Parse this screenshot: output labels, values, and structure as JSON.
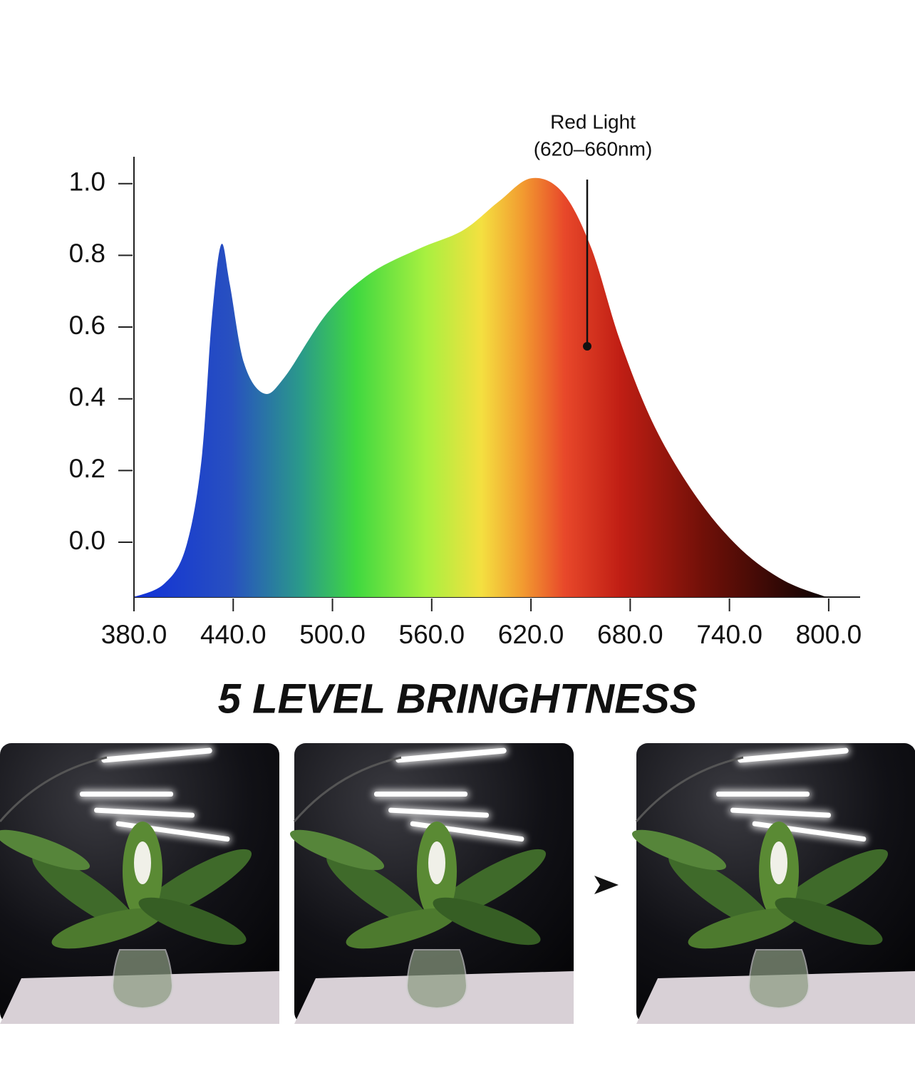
{
  "chart_data": {
    "type": "area",
    "x": [
      380,
      398,
      411,
      420.6,
      427,
      432.7,
      437.9,
      446.5,
      458.5,
      471,
      497,
      523,
      553,
      579,
      600.5,
      620,
      639,
      656.5,
      674,
      695,
      721,
      747,
      773,
      798.5
    ],
    "series": [
      {
        "values": [
          -0.153,
          -0.117,
          -0.02,
          0.22,
          0.62,
          0.83,
          0.72,
          0.5,
          0.415,
          0.46,
          0.64,
          0.75,
          0.82,
          0.87,
          0.95,
          1.015,
          0.976,
          0.82,
          0.56,
          0.32,
          0.12,
          -0.02,
          -0.107,
          -0.153
        ]
      }
    ],
    "xlim": [
      380,
      819
    ],
    "ylim": [
      -0.153,
      1.075
    ],
    "xticks": [
      {
        "value": 380,
        "label": "380.0"
      },
      {
        "value": 440,
        "label": "440.0"
      },
      {
        "value": 500,
        "label": "500.0"
      },
      {
        "value": 560,
        "label": "560.0"
      },
      {
        "value": 620,
        "label": "620.0"
      },
      {
        "value": 680,
        "label": "680.0"
      },
      {
        "value": 740,
        "label": "740.0"
      },
      {
        "value": 800,
        "label": "800.0"
      }
    ],
    "yticks": [
      {
        "value": 0,
        "label": "0.0"
      },
      0.2,
      0.4,
      0.6,
      0.8,
      {
        "value": 1,
        "label": "1.0"
      }
    ],
    "annotation": [
      "Red Light",
      "(620–660nm)"
    ]
  },
  "heading": "5 LEVEL BRINGHTNESS"
}
